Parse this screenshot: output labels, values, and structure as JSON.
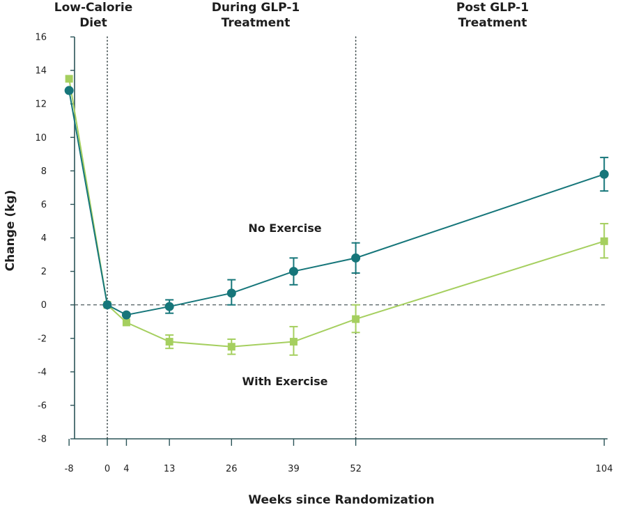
{
  "chart_data": {
    "type": "line",
    "xlabel": "Weeks since Randomization",
    "ylabel": "Change (kg)",
    "x": [
      -8,
      0,
      4,
      13,
      26,
      39,
      52,
      104
    ],
    "xlim": [
      -10.5,
      104.7
    ],
    "ylim": [
      -8,
      16
    ],
    "yticks": [
      -8,
      -6,
      -4,
      -2,
      0,
      2,
      4,
      6,
      8,
      10,
      12,
      14,
      16
    ],
    "phase_dividers_x": [
      0,
      52
    ],
    "phases": [
      {
        "label_line1": "Low-Calorie",
        "label_line2": "Diet"
      },
      {
        "label_line1": "During GLP-1",
        "label_line2": "Treatment"
      },
      {
        "label_line1": "Post GLP-1",
        "label_line2": "Treatment"
      }
    ],
    "grid": false,
    "reference_line_y": 0,
    "series": [
      {
        "name": "No Exercise",
        "color": "#16767a",
        "marker": "circle",
        "values": [
          12.8,
          0.0,
          -0.6,
          -0.1,
          0.7,
          2.0,
          2.8,
          7.8
        ],
        "err_low": [
          null,
          null,
          null,
          -0.5,
          0.0,
          1.2,
          1.9,
          6.8
        ],
        "err_high": [
          null,
          null,
          null,
          0.3,
          1.5,
          2.8,
          3.7,
          8.8
        ]
      },
      {
        "name": "With Exercise",
        "color": "#a5cf5f",
        "marker": "square",
        "values": [
          13.5,
          0.0,
          -1.05,
          -2.2,
          -2.5,
          -2.2,
          -0.85,
          3.8
        ],
        "err_low": [
          null,
          null,
          null,
          -2.6,
          -2.95,
          -3.0,
          -1.65,
          2.8
        ],
        "err_high": [
          null,
          null,
          null,
          -1.8,
          -2.05,
          -1.3,
          0.0,
          4.85
        ]
      }
    ]
  }
}
